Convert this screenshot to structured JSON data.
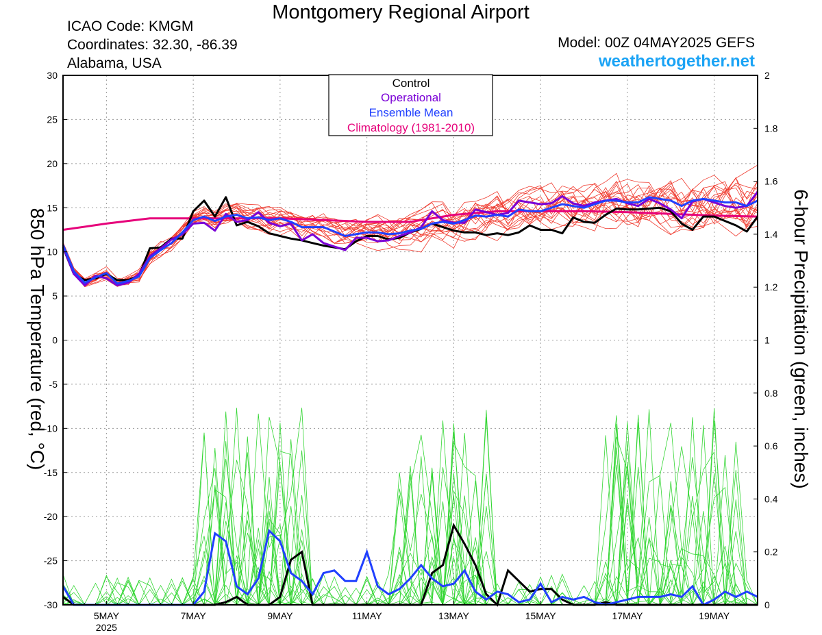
{
  "header": {
    "title": "Montgomery Regional Airport",
    "icao": "ICAO Code: KMGM",
    "coords": "Coordinates: 32.30, -86.39",
    "region": "Alabama, USA",
    "model": "Model: 00Z 04MAY2025 GEFS",
    "site": "weathertogether.net"
  },
  "colors": {
    "control": "#000000",
    "operational": "#7a00d6",
    "ensemble_mean": "#2040ff",
    "climatology": "#e6007a",
    "temperature_members": "#f03a2e",
    "precip_members": "#33d633",
    "site": "#1aa3f5"
  },
  "chart_data": {
    "type": "line",
    "title": "Montgomery Regional Airport",
    "y_left_label": "850 hPa Temperature (red, °C)",
    "y_right_label": "6-hour Precipitation (green, inches)",
    "ylim_left": [
      -30,
      30
    ],
    "ylim_right": [
      0,
      2
    ],
    "y_left_ticks": [
      "30",
      "25",
      "20",
      "15",
      "10",
      "5",
      "0",
      "-5",
      "-10",
      "-15",
      "-20",
      "-25",
      "-30"
    ],
    "y_right_ticks": [
      "2",
      "1.8",
      "1.6",
      "1.4",
      "1.2",
      "1",
      "0.8",
      "0.6",
      "0.4",
      "0.2",
      "0"
    ],
    "x_unit": "hours since 00Z 04MAY2025",
    "xlim": [
      0,
      384
    ],
    "x_ticks": [
      {
        "label": "5MAY",
        "sub": "2025",
        "x": 24
      },
      {
        "label": "7MAY",
        "x": 72
      },
      {
        "label": "9MAY",
        "x": 120
      },
      {
        "label": "11MAY",
        "x": 168
      },
      {
        "label": "13MAY",
        "x": 216
      },
      {
        "label": "15MAY",
        "x": 264
      },
      {
        "label": "17MAY",
        "x": 312
      },
      {
        "label": "19MAY",
        "x": 360
      }
    ],
    "grid": true,
    "legend_position": "top-center",
    "legend": [
      "Control",
      "Operational",
      "Ensemble Mean",
      "Climatology (1981-2010)"
    ],
    "temperature_series": [
      {
        "name": "Control",
        "x": [
          0,
          6,
          12,
          18,
          24,
          30,
          36,
          42,
          48,
          54,
          60,
          66,
          72,
          78,
          84,
          90,
          96,
          102,
          108,
          114,
          120,
          126,
          132,
          138,
          144,
          150,
          156,
          162,
          168,
          174,
          180,
          186,
          192,
          198,
          204,
          210,
          216,
          222,
          228,
          234,
          240,
          246,
          252,
          258,
          264,
          270,
          276,
          282,
          288,
          294,
          300,
          306,
          312,
          318,
          324,
          330,
          336,
          342,
          348,
          354,
          360,
          366,
          372,
          378,
          384
        ],
        "values": [
          10.5,
          7.5,
          6.8,
          7.0,
          7.5,
          6.8,
          6.8,
          7.3,
          10.4,
          10.5,
          11.5,
          11.5,
          14.6,
          15.8,
          14.0,
          16.2,
          13.0,
          13.4,
          12.9,
          12.1,
          11.8,
          11.5,
          11.3,
          11.0,
          10.7,
          10.5,
          10.3,
          11.2,
          11.8,
          11.8,
          11.4,
          11.6,
          12.2,
          12.6,
          13.2,
          12.8,
          12.4,
          12.2,
          12.2,
          11.9,
          12.1,
          11.9,
          12.2,
          13.0,
          12.5,
          12.5,
          12.1,
          13.9,
          13.4,
          13.3,
          14.2,
          14.9,
          14.8,
          14.8,
          14.9,
          15.0,
          14.6,
          13.2,
          12.5,
          14.0,
          14.0,
          13.5,
          13.0,
          12.3,
          14.0
        ]
      },
      {
        "name": "Operational",
        "x": [
          0,
          6,
          12,
          18,
          24,
          30,
          36,
          42,
          48,
          54,
          60,
          66,
          72,
          78,
          84,
          90,
          96,
          102,
          108,
          114,
          120,
          126,
          132,
          138,
          144,
          150,
          156,
          162,
          168,
          174,
          180,
          186,
          192,
          198,
          204,
          210,
          216,
          222,
          228,
          234,
          240,
          246,
          252,
          258,
          264,
          270,
          276,
          282,
          288,
          294,
          300,
          306,
          312,
          318,
          324,
          330,
          336,
          342,
          348,
          354,
          360,
          366,
          372,
          378,
          384
        ],
        "values": [
          10.6,
          7.5,
          6.2,
          7.3,
          7.0,
          6.2,
          6.5,
          7.5,
          9.5,
          10.4,
          11.4,
          12.0,
          13.2,
          13.3,
          12.4,
          14.3,
          13.4,
          13.6,
          14.5,
          13.3,
          12.9,
          13.2,
          11.3,
          12.0,
          11.0,
          10.6,
          10.2,
          11.6,
          11.6,
          11.2,
          11.3,
          11.8,
          12.2,
          12.8,
          14.6,
          13.6,
          13.3,
          13.3,
          14.8,
          14.5,
          14.2,
          14.4,
          15.8,
          15.6,
          15.4,
          15.5,
          16.3,
          15.5,
          15.2,
          15.6,
          15.8,
          16.0,
          15.5,
          15.2,
          16.0,
          15.5,
          14.8,
          13.8,
          15.7,
          16.0,
          15.6,
          15.2,
          15.0,
          15.2,
          16.8
        ]
      },
      {
        "name": "Ensemble Mean",
        "x": [
          0,
          6,
          12,
          18,
          24,
          30,
          36,
          42,
          48,
          54,
          60,
          66,
          72,
          78,
          84,
          90,
          96,
          102,
          108,
          114,
          120,
          126,
          132,
          138,
          144,
          150,
          156,
          162,
          168,
          174,
          180,
          186,
          192,
          198,
          204,
          210,
          216,
          222,
          228,
          234,
          240,
          246,
          252,
          258,
          264,
          270,
          276,
          282,
          288,
          294,
          300,
          306,
          312,
          318,
          324,
          330,
          336,
          342,
          348,
          354,
          360,
          366,
          372,
          378,
          384
        ],
        "values": [
          10.8,
          7.8,
          6.5,
          7.1,
          7.6,
          6.4,
          6.7,
          7.2,
          9.3,
          10.2,
          11.0,
          12.2,
          13.6,
          14.0,
          13.5,
          14.0,
          14.2,
          13.8,
          13.9,
          13.6,
          13.8,
          13.4,
          12.8,
          12.8,
          12.8,
          12.3,
          11.8,
          12.0,
          12.2,
          12.2,
          12.0,
          12.1,
          12.4,
          12.6,
          13.2,
          13.4,
          13.2,
          13.6,
          14.1,
          14.0,
          14.2,
          14.0,
          14.8,
          14.6,
          14.6,
          15.0,
          15.4,
          15.2,
          15.0,
          15.4,
          15.8,
          15.8,
          15.6,
          15.6,
          16.2,
          16.0,
          15.8,
          15.2,
          15.8,
          16.0,
          15.8,
          15.6,
          15.6,
          15.2,
          15.8
        ]
      },
      {
        "name": "Climatology (1981-2010)",
        "x": [
          0,
          24,
          48,
          72,
          96,
          120,
          144,
          168,
          192,
          216,
          240,
          264,
          288,
          312,
          336,
          360,
          384
        ],
        "values": [
          12.5,
          13.2,
          13.8,
          13.8,
          13.8,
          13.8,
          13.6,
          13.4,
          13.4,
          14.2,
          14.6,
          14.6,
          14.6,
          14.5,
          14.3,
          14.1,
          14.0
        ]
      }
    ],
    "precipitation_series": [
      {
        "name": "Control",
        "x": [
          0,
          6,
          12,
          18,
          24,
          30,
          36,
          42,
          48,
          54,
          60,
          66,
          72,
          78,
          84,
          90,
          96,
          102,
          108,
          114,
          120,
          126,
          132,
          138,
          144,
          150,
          156,
          162,
          168,
          174,
          180,
          186,
          192,
          198,
          204,
          210,
          216,
          222,
          228,
          234,
          240,
          246,
          252,
          258,
          264,
          270,
          276,
          282,
          288,
          294,
          300,
          306,
          312,
          318,
          324,
          330,
          336,
          342,
          348,
          354,
          360,
          366,
          372,
          378,
          384
        ],
        "values": [
          0.03,
          0,
          0,
          0,
          0,
          0,
          0,
          0,
          0,
          0,
          0,
          0,
          0,
          0,
          0,
          0.01,
          0.03,
          0,
          0,
          0,
          0.03,
          0.17,
          0.2,
          0,
          0,
          0,
          0,
          0,
          0,
          0,
          0,
          0,
          0,
          0,
          0.12,
          0.15,
          0.3,
          0.23,
          0.15,
          0.04,
          0,
          0.13,
          0.09,
          0.05,
          0.06,
          0.06,
          0.02,
          0,
          0,
          0,
          0.01,
          0,
          0,
          0,
          0,
          0,
          0,
          0,
          0,
          0,
          0,
          0,
          0,
          0,
          0
        ]
      },
      {
        "name": "Ensemble Mean",
        "x": [
          0,
          6,
          12,
          18,
          24,
          30,
          36,
          42,
          48,
          54,
          60,
          66,
          72,
          78,
          84,
          90,
          96,
          102,
          108,
          114,
          120,
          126,
          132,
          138,
          144,
          150,
          156,
          162,
          168,
          174,
          180,
          186,
          192,
          198,
          204,
          210,
          216,
          222,
          228,
          234,
          240,
          246,
          252,
          258,
          264,
          270,
          276,
          282,
          288,
          294,
          300,
          306,
          312,
          318,
          324,
          330,
          336,
          342,
          348,
          354,
          360,
          366,
          372,
          378,
          384
        ],
        "values": [
          0.07,
          0,
          0,
          0,
          0,
          0,
          0,
          0,
          0,
          0,
          0,
          0,
          0,
          0.05,
          0.27,
          0.24,
          0.07,
          0.04,
          0.1,
          0.28,
          0.24,
          0.12,
          0.09,
          0.04,
          0.12,
          0.13,
          0.09,
          0.09,
          0.2,
          0.07,
          0.04,
          0.06,
          0.1,
          0.15,
          0.1,
          0.07,
          0.08,
          0.13,
          0.05,
          0.02,
          0.05,
          0.04,
          0.01,
          0.02,
          0.08,
          0.01,
          0.03,
          0.02,
          0.03,
          0.01,
          0,
          0.01,
          0.02,
          0.03,
          0.03,
          0.03,
          0.04,
          0.03,
          0.07,
          0,
          0.02,
          0.05,
          0.03,
          0.05,
          0.03
        ]
      }
    ]
  }
}
